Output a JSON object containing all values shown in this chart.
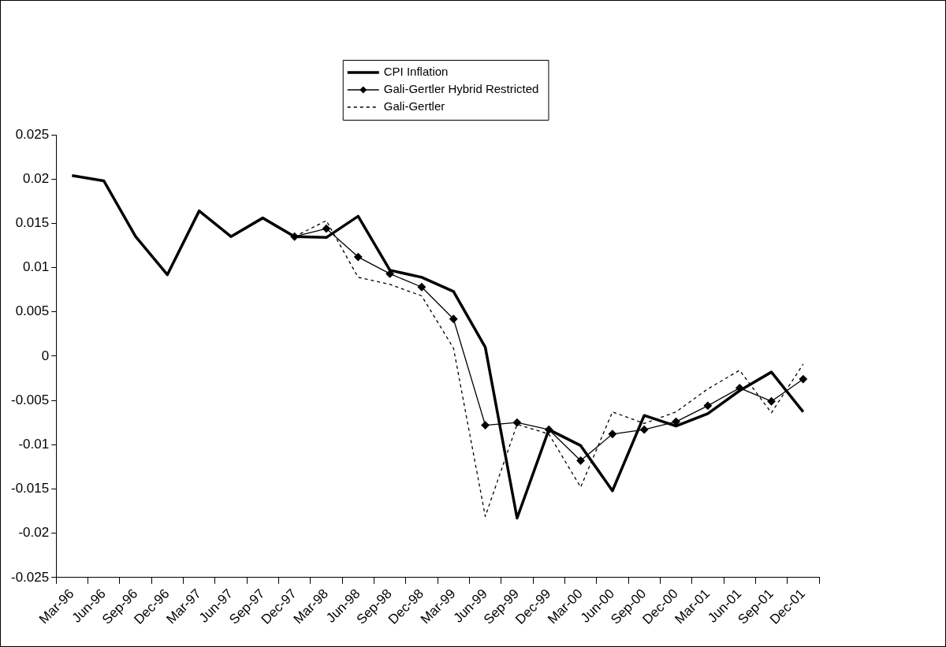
{
  "chart_data": {
    "type": "line",
    "categories": [
      "Mar-96",
      "Jun-96",
      "Sep-96",
      "Dec-96",
      "Mar-97",
      "Jun-97",
      "Sep-97",
      "Dec-97",
      "Mar-98",
      "Jun-98",
      "Sep-98",
      "Dec-98",
      "Mar-99",
      "Jun-99",
      "Sep-99",
      "Dec-99",
      "Mar-00",
      "Jun-00",
      "Sep-00",
      "Dec-00",
      "Mar-01",
      "Jun-01",
      "Sep-01",
      "Dec-01"
    ],
    "series": [
      {
        "name": "CPI Inflation",
        "color": "#000000",
        "marker": "none",
        "line_style": "solid",
        "values": [
          0.0204,
          0.0198,
          0.0135,
          0.0092,
          0.0164,
          0.0135,
          0.0156,
          0.0135,
          0.0134,
          0.0158,
          0.0097,
          0.0089,
          0.0073,
          0.001,
          -0.0183,
          -0.0083,
          -0.0101,
          -0.0152,
          -0.0067,
          -0.0079,
          -0.0065,
          -0.0039,
          -0.0018,
          -0.0063
        ]
      },
      {
        "name": "Gali-Gertler Hybrid Restricted",
        "color": "#000000",
        "marker": "diamond",
        "line_style": "solid",
        "values": [
          null,
          null,
          null,
          null,
          null,
          null,
          null,
          0.0135,
          0.0144,
          0.0112,
          0.0093,
          0.0078,
          0.0042,
          -0.0078,
          -0.0075,
          -0.0083,
          -0.0118,
          -0.0088,
          -0.0083,
          -0.0074,
          -0.0056,
          -0.0036,
          -0.0051,
          -0.0026
        ]
      },
      {
        "name": "Gali-Gertler",
        "color": "#000000",
        "marker": "none",
        "line_style": "dashed",
        "values": [
          null,
          null,
          null,
          null,
          null,
          null,
          null,
          0.0135,
          0.0153,
          0.0089,
          0.0081,
          0.0068,
          0.0009,
          -0.0181,
          -0.0077,
          -0.0088,
          -0.0148,
          -0.0063,
          -0.0076,
          -0.0063,
          -0.0037,
          -0.0016,
          -0.0064,
          -0.0009
        ]
      }
    ],
    "ylim": [
      -0.025,
      0.025
    ],
    "yticks": [
      -0.025,
      -0.02,
      -0.015,
      -0.01,
      -0.005,
      0,
      0.005,
      0.01,
      0.015,
      0.02,
      0.025
    ],
    "grid": false,
    "legend": "top"
  }
}
